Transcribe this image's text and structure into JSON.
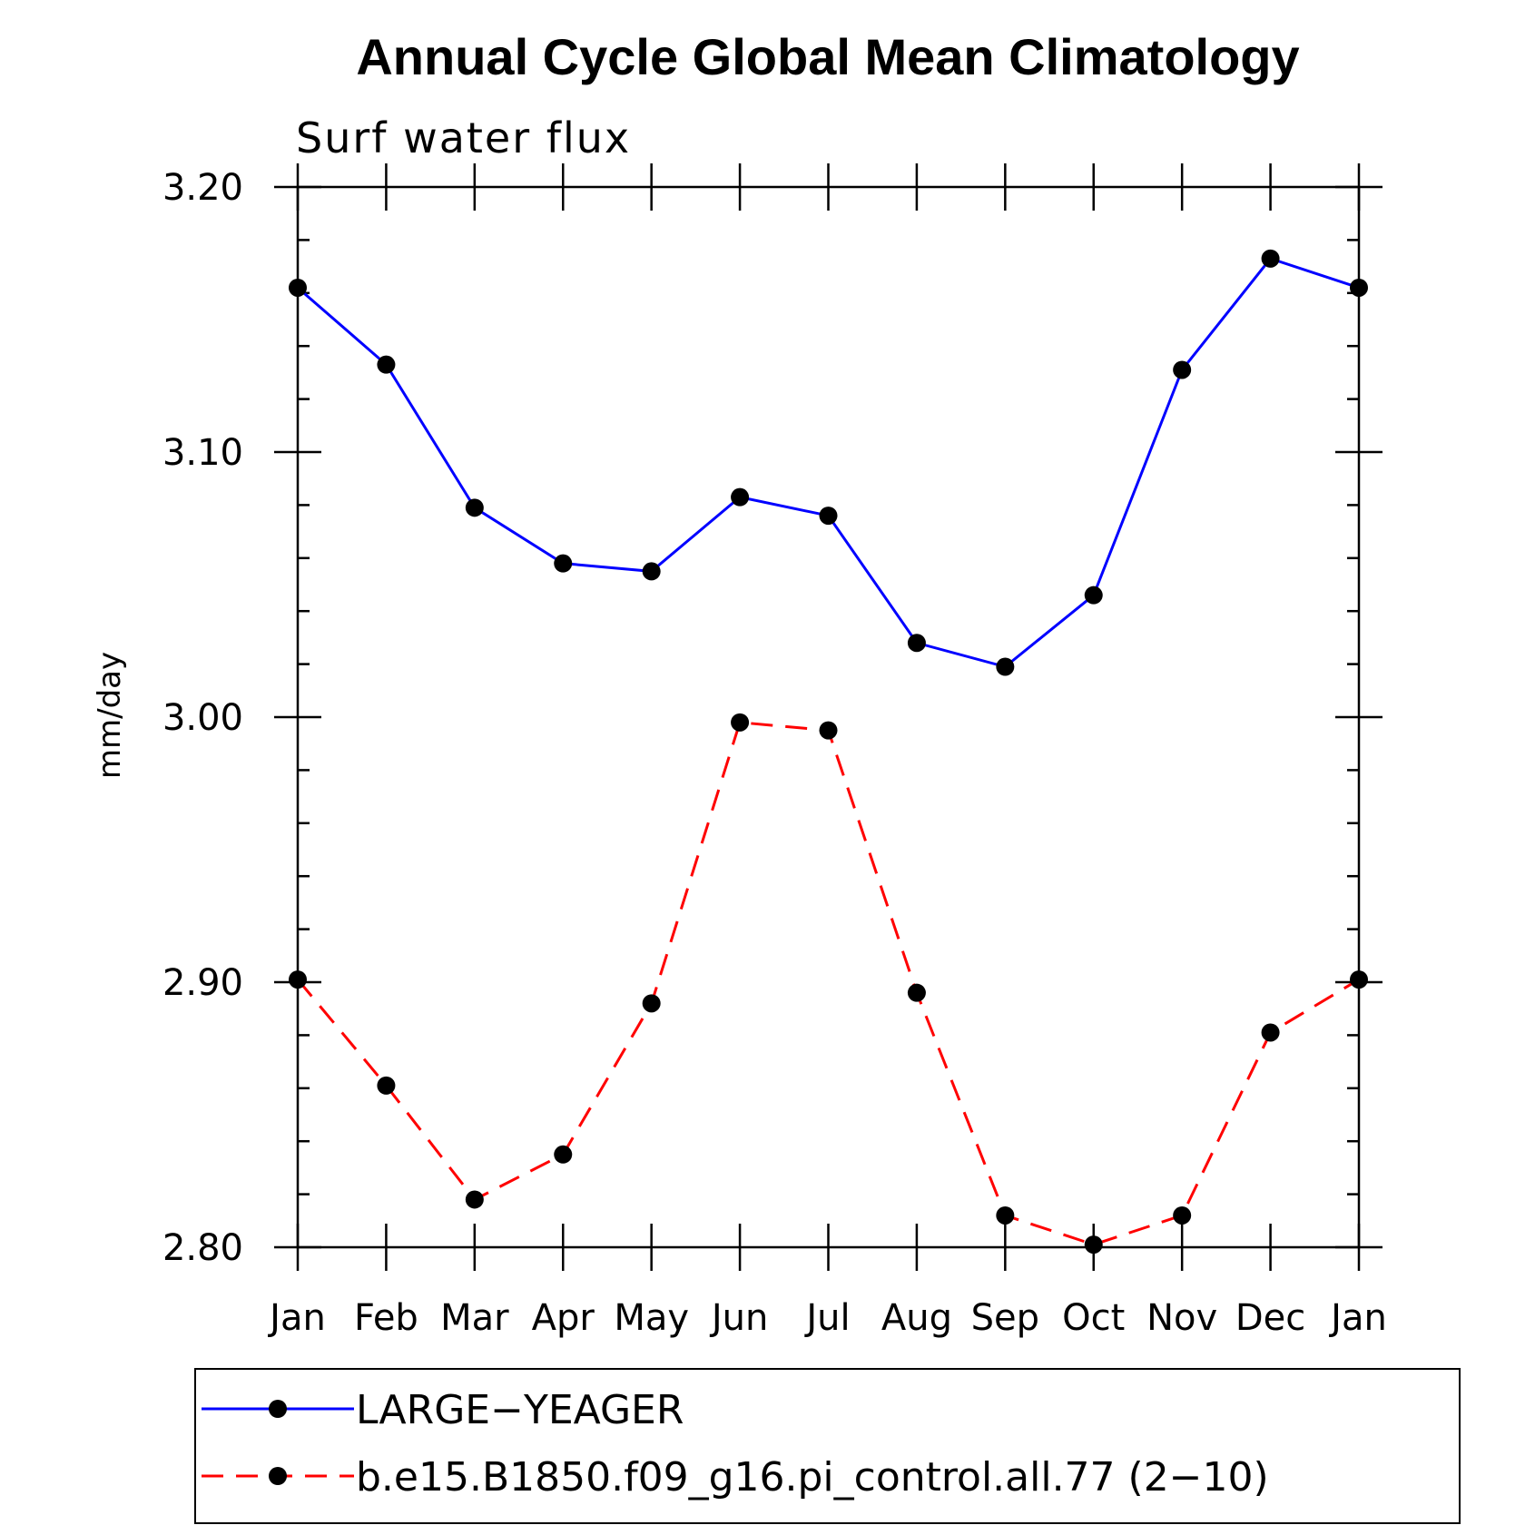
{
  "chart_data": {
    "type": "line",
    "title": "Annual Cycle Global Mean Climatology",
    "subtitle": "Surf water flux",
    "xlabel": "",
    "ylabel": "mm/day",
    "ylim": [
      2.8,
      3.2
    ],
    "yticks": [
      "2.80",
      "2.90",
      "3.00",
      "3.10",
      "3.20"
    ],
    "yminor_step": 0.02,
    "categories": [
      "Jan",
      "Feb",
      "Mar",
      "Apr",
      "May",
      "Jun",
      "Jul",
      "Aug",
      "Sep",
      "Oct",
      "Nov",
      "Dec",
      "Jan"
    ],
    "grid": false,
    "legend_placement": "bottom",
    "series": [
      {
        "name": "LARGE−YEAGER",
        "color": "#0000ff",
        "dash": "solid",
        "marker": "circle",
        "values": [
          3.162,
          3.133,
          3.079,
          3.058,
          3.055,
          3.083,
          3.076,
          3.028,
          3.019,
          3.046,
          3.131,
          3.173,
          3.162
        ]
      },
      {
        "name": "b.e15.B1850.f09_g16.pi_control.all.77 (2−10)",
        "color": "#ff0000",
        "dash": "dashed",
        "marker": "circle",
        "values": [
          2.901,
          2.861,
          2.818,
          2.835,
          2.892,
          2.998,
          2.995,
          2.896,
          2.812,
          2.801,
          2.812,
          2.881,
          2.901
        ]
      }
    ]
  }
}
